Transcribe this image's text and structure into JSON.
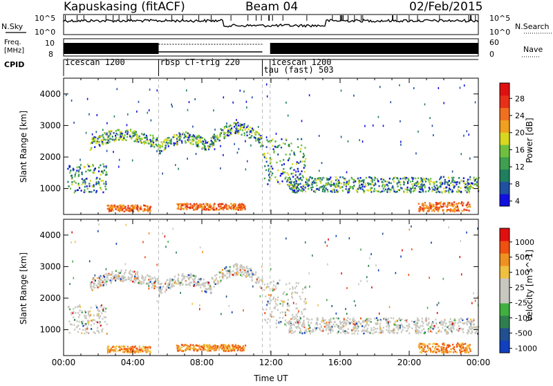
{
  "header": {
    "station": "Kapuskasing (fitACF)",
    "beam": "Beam 04",
    "date": "02/Feb/2015"
  },
  "status_panels": {
    "nsky_label": "N.Sky",
    "nsky_ticks": [
      "10^5",
      "10^0"
    ],
    "nsearch_label": "N.Search",
    "nsearch_ticks": [
      "10^5",
      "10^0"
    ],
    "freq_label_line1": "Freq.",
    "freq_label_line2": "[MHz]",
    "freq_ticks": [
      "10",
      "8"
    ],
    "nave_label": "Nave",
    "nave_ticks": [
      "60",
      "0"
    ],
    "cpid_label": "CPID"
  },
  "cpid_segments": [
    {
      "start_h": 0.0,
      "end_h": 5.5,
      "name": "icescan 1200"
    },
    {
      "start_h": 5.5,
      "end_h": 11.5,
      "name": "rbsp CT-trig 220"
    },
    {
      "start_h": 11.5,
      "end_h": 11.95,
      "name": "tau (fast) 503"
    },
    {
      "start_h": 11.95,
      "end_h": 24.0,
      "name": "icescan 1200"
    }
  ],
  "chart_data": [
    {
      "type": "heatmap",
      "name": "power",
      "ylabel": "Slant Range [km]",
      "xlim_hours": [
        0,
        24
      ],
      "ylim_km": [
        180,
        4500
      ],
      "yticks": [
        "1000",
        "2000",
        "3000",
        "4000"
      ],
      "colorbar_label": "Power [dB]",
      "colorbar_ticks": [
        "28",
        "24",
        "20",
        "16",
        "12",
        "8",
        "4"
      ],
      "colors": [
        "#1010e0",
        "#2050a0",
        "#1f7f5f",
        "#3fa04f",
        "#6fc03f",
        "#d8d820",
        "#f0a020",
        "#f07020",
        "#e83018",
        "#e01010"
      ],
      "vertical_dashes_h": [
        5.5,
        11.5,
        11.95
      ]
    },
    {
      "type": "heatmap",
      "name": "velocity",
      "ylabel": "Slant Range [km]",
      "xlabel": "Time UT",
      "xlim_hours": [
        0,
        24
      ],
      "ylim_km": [
        180,
        4500
      ],
      "yticks": [
        "1000",
        "2000",
        "3000",
        "4000"
      ],
      "xticks": [
        "00:00",
        "04:00",
        "08:00",
        "12:00",
        "16:00",
        "20:00",
        "00:00"
      ],
      "colorbar_label": "Velocity [m s^-1]",
      "colorbar_ticks": [
        "1000",
        "500",
        "100",
        "25",
        "-25",
        "-100",
        "-500",
        "-1000"
      ],
      "colors": [
        "#1040c0",
        "#205090",
        "#2f7f4f",
        "#40b040",
        "#c8c8c0",
        "#c8c8c0",
        "#f0c040",
        "#f09020",
        "#f05010",
        "#e01010"
      ],
      "vertical_dashes_h": [
        5.5,
        11.5,
        11.95
      ]
    }
  ],
  "echo_regions": [
    {
      "t0": 0.2,
      "t1": 2.5,
      "r0": 900,
      "r1": 1800,
      "type": "mixed"
    },
    {
      "t0": 1.5,
      "t1": 5.5,
      "r0": 2200,
      "r1": 2800,
      "type": "arc"
    },
    {
      "t0": 5.5,
      "t1": 8.5,
      "r0": 2000,
      "r1": 2700,
      "type": "arc"
    },
    {
      "t0": 8.5,
      "t1": 11.5,
      "r0": 2100,
      "r1": 3000,
      "type": "arc"
    },
    {
      "t0": 11.5,
      "t1": 14.0,
      "r0": 1100,
      "r1": 2600,
      "type": "mixed"
    },
    {
      "t0": 13.0,
      "t1": 24.0,
      "r0": 900,
      "r1": 1400,
      "type": "band"
    },
    {
      "t0": 2.5,
      "t1": 5.0,
      "r0": 300,
      "r1": 500,
      "type": "near"
    },
    {
      "t0": 6.5,
      "t1": 10.5,
      "r0": 350,
      "r1": 550,
      "type": "near"
    },
    {
      "t0": 20.5,
      "t1": 23.5,
      "r0": 300,
      "r1": 600,
      "type": "near"
    }
  ]
}
